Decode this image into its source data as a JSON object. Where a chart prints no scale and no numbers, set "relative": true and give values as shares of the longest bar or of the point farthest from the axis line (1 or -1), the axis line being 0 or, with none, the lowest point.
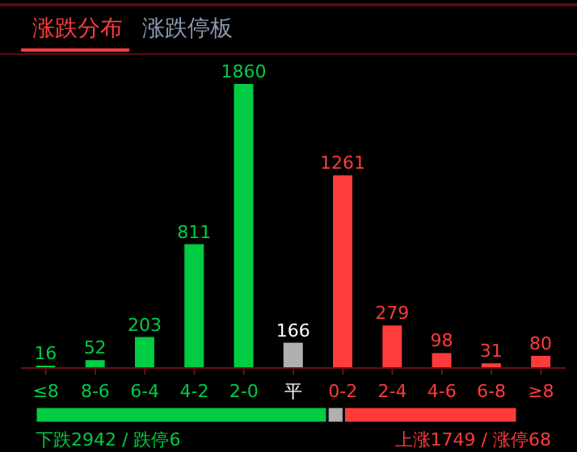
{
  "chart_data": [
    {
      "type": "bar",
      "categories": [
        "≤8",
        "8-6",
        "6-4",
        "4-2",
        "2-0",
        "平",
        "0-2",
        "2-4",
        "4-6",
        "6-8",
        "≥8"
      ],
      "values": [
        16,
        52,
        203,
        811,
        1860,
        166,
        1261,
        279,
        98,
        31,
        80
      ],
      "colors": [
        "#00cc44",
        "#00cc44",
        "#00cc44",
        "#00cc44",
        "#00cc44",
        "#b0b0b0",
        "#ff3b3b",
        "#ff3b3b",
        "#ff3b3b",
        "#ff3b3b",
        "#ff3b3b"
      ],
      "data_labels": true,
      "annotations": [
        "涨跌分布",
        "涨跌停板"
      ]
    },
    {
      "type": "bar",
      "orientation": "horizontal",
      "stacked": true,
      "relative": true,
      "categories": [
        null
      ],
      "series": [
        {
          "color": "#00cc44",
          "values": [
            0.606
          ]
        },
        {
          "color": "#b0b0b0",
          "values": [
            0.034
          ]
        },
        {
          "color": "#ff3b3b",
          "values": [
            0.36
          ]
        }
      ],
      "annotations": [
        "下跌2942 / 跌停6",
        "上涨1749 / 涨停68"
      ]
    }
  ]
}
